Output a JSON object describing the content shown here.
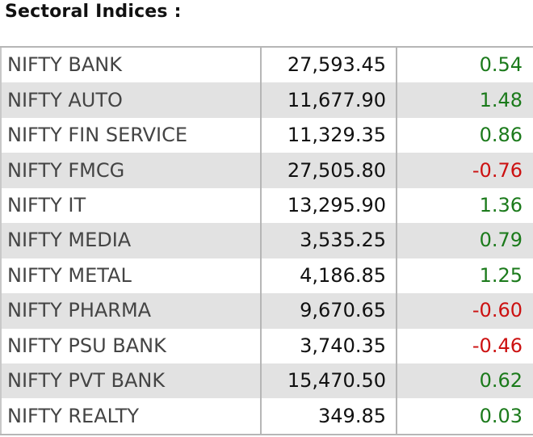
{
  "title": "Sectoral Indices :",
  "colors": {
    "positive": "#1b7a1b",
    "negative": "#cc1111",
    "row_alt": "#e2e2e2"
  },
  "rows": [
    {
      "name": "NIFTY BANK",
      "value": "27,593.45",
      "change": "0.54"
    },
    {
      "name": "NIFTY AUTO",
      "value": "11,677.90",
      "change": "1.48"
    },
    {
      "name": "NIFTY FIN SERVICE",
      "value": "11,329.35",
      "change": "0.86"
    },
    {
      "name": "NIFTY FMCG",
      "value": "27,505.80",
      "change": "-0.76"
    },
    {
      "name": "NIFTY IT",
      "value": "13,295.90",
      "change": "1.36"
    },
    {
      "name": "NIFTY MEDIA",
      "value": "3,535.25",
      "change": "0.79"
    },
    {
      "name": "NIFTY METAL",
      "value": "4,186.85",
      "change": "1.25"
    },
    {
      "name": "NIFTY PHARMA",
      "value": "9,670.65",
      "change": "-0.60"
    },
    {
      "name": "NIFTY PSU BANK",
      "value": "3,740.35",
      "change": "-0.46"
    },
    {
      "name": "NIFTY PVT BANK",
      "value": "15,470.50",
      "change": "0.62"
    },
    {
      "name": "NIFTY REALTY",
      "value": "349.85",
      "change": "0.03"
    }
  ]
}
